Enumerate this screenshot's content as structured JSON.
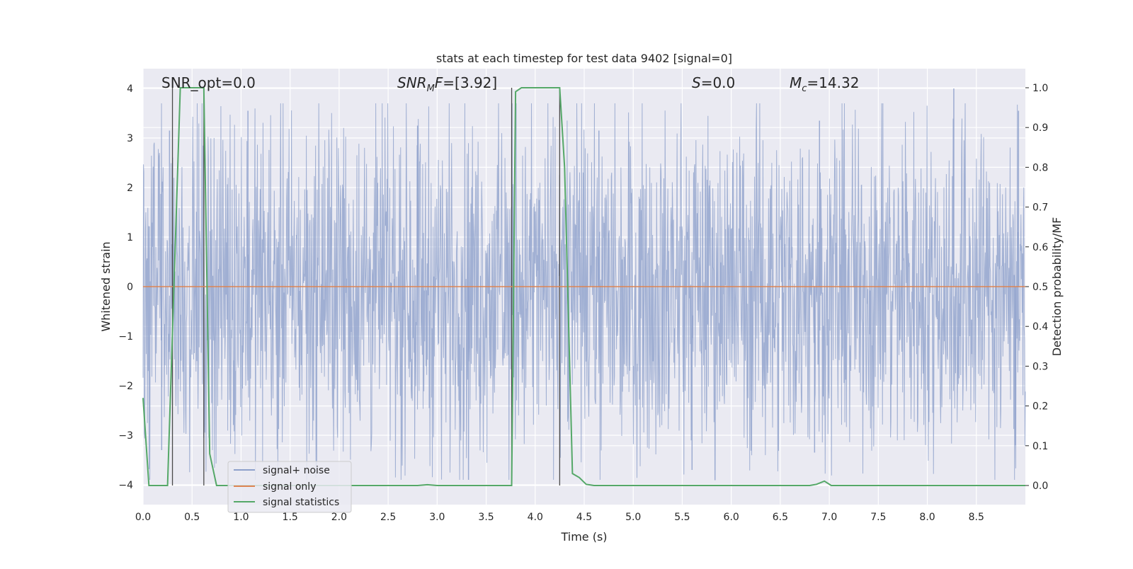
{
  "chart_data": {
    "type": "line",
    "title": "stats at each timestep for test data 9402 [signal=0]",
    "xlabel": "Time (s)",
    "ylabel": "Whitened strain",
    "ylabel_right": "Detection probability/MF",
    "xlim": [
      0.0,
      9.0
    ],
    "ylim": [
      -4.4,
      4.4
    ],
    "ylim_right": [
      -0.048,
      1.048
    ],
    "x_ticks": [
      "0.0",
      "0.5",
      "1.0",
      "1.5",
      "2.0",
      "2.5",
      "3.0",
      "3.5",
      "4.0",
      "4.5",
      "5.0",
      "5.5",
      "6.0",
      "6.5",
      "7.0",
      "7.5",
      "8.0",
      "8.5"
    ],
    "y_ticks": [
      "4",
      "3",
      "2",
      "1",
      "0",
      "−1",
      "−2",
      "−3",
      "−4"
    ],
    "y_ticks_right": [
      "1.0",
      "0.9",
      "0.8",
      "0.7",
      "0.6",
      "0.5",
      "0.4",
      "0.3",
      "0.2",
      "0.1",
      "0.0"
    ],
    "grid": true,
    "legend_placement": "lower-left",
    "annotations": {
      "snr_opt": "SNR_opt=0.0",
      "snr_mf": "=[3.92]",
      "s": "=0.0",
      "mc": "=14.32"
    },
    "series": [
      {
        "name": "signal+ noise",
        "color": "#8da0cb",
        "axis": "left",
        "noise_envelope": {
          "typical_amplitude": 1.6,
          "max_peak": 4.0,
          "min_trough": -3.9,
          "notable_peaks": [
            {
              "x": 0.27,
              "y": 3.15
            },
            {
              "x": 1.07,
              "y": 3.55
            },
            {
              "x": 2.8,
              "y": 3.25
            },
            {
              "x": 4.65,
              "y": 3.15
            },
            {
              "x": 6.9,
              "y": 3.35
            },
            {
              "x": 8.27,
              "y": 4.0
            },
            {
              "x": 8.93,
              "y": 3.55
            }
          ],
          "notable_troughs": [
            {
              "x": 0.19,
              "y": -3.3
            },
            {
              "x": 0.62,
              "y": -3.05
            },
            {
              "x": 3.32,
              "y": -3.9
            },
            {
              "x": 5.6,
              "y": -3.7
            },
            {
              "x": 6.85,
              "y": -3.35
            },
            {
              "x": 8.9,
              "y": -3.2
            }
          ]
        }
      },
      {
        "name": "signal only",
        "color": "#dd8452",
        "axis": "left",
        "x": [
          0.0,
          9.0
        ],
        "y": [
          0.0,
          0.0
        ]
      },
      {
        "name": "signal statistics",
        "color": "#55a868",
        "axis": "right",
        "x": [
          0.0,
          0.06,
          0.25,
          0.38,
          0.5,
          0.62,
          0.68,
          0.75,
          2.8,
          2.9,
          3.0,
          3.76,
          3.8,
          3.86,
          4.25,
          4.3,
          4.38,
          4.45,
          4.52,
          4.6,
          6.8,
          6.87,
          6.95,
          7.02,
          8.5,
          9.0
        ],
        "y": [
          0.22,
          0.0,
          0.0,
          1.0,
          1.0,
          1.0,
          0.08,
          0.0,
          0.0,
          0.002,
          0.0,
          0.0,
          0.99,
          1.0,
          1.0,
          0.8,
          0.03,
          0.02,
          0.003,
          0.0,
          0.0,
          0.003,
          0.011,
          0.0,
          0.0,
          0.0
        ]
      }
    ],
    "vertical_markers": [
      0.3,
      0.62,
      3.76,
      4.25
    ]
  }
}
